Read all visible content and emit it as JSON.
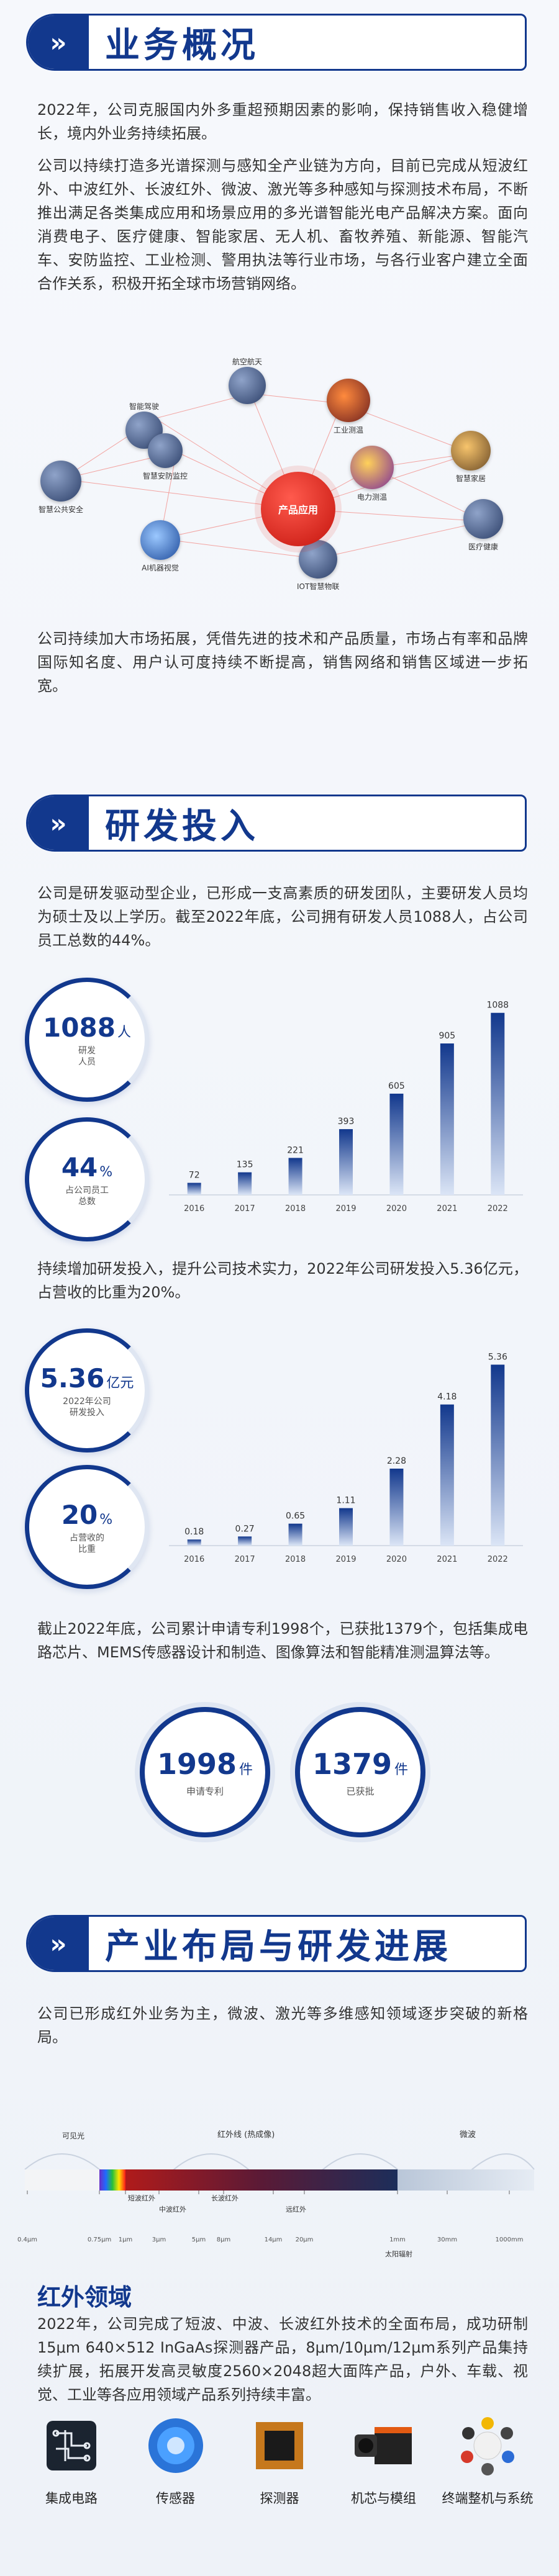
{
  "section1": {
    "badge": "»",
    "title": "业务概况",
    "para1": "2022年，公司克服国内外多重超预期因素的影响，保持销售收入稳健增长，境内外业务持续拓展。",
    "para2": "公司以持续打造多光谱探测与感知全产业链为方向，目前已完成从短波红外、中波红外、长波红外、微波、激光等多种感知与探测技术布局，不断推出满足各类集成应用和场景应用的多光谱智能光电产品解决方案。面向消费电子、医疗健康、智能家居、无人机、畜牧养殖、新能源、智能汽车、安防监控、工业检测、警用执法等行业市场，与各行业客户建立全面合作关系，积极开拓全球市场营销网络。",
    "ecosystem": {
      "center": "产品应用",
      "nodes": [
        "航空航天",
        "工业测温",
        "智能驾驶",
        "智慧家居",
        "智慧安防监控",
        "电力测温",
        "智慧公共安全",
        "医疗健康",
        "AI机器视觉",
        "IOT智慧物联"
      ]
    },
    "para3": "公司持续加大市场拓展，凭借先进的技术和产品质量，市场占有率和品牌国际知名度、用户认可度持续不断提高，销售网络和销售区域进一步拓宽。"
  },
  "section2": {
    "badge": "»",
    "title": "研发投入",
    "para1": "公司是研发驱动型企业，已形成一支高素质的研发团队，主要研发人员均为硕士及以上学历。截至2022年底，公司拥有研发人员1088人，占公司员工总数的44%。",
    "stat_staff": {
      "num": "1088",
      "unit": "人",
      "sub": "研发\n人员"
    },
    "stat_staff_pct": {
      "num": "44",
      "unit": "%",
      "sub": "占公司员工\n总数"
    },
    "para2": "持续增加研发投入，提升公司技术实力，2022年公司研发投入5.36亿元，占营收的比重为20%。",
    "stat_invest": {
      "num": "5.36",
      "unit": "亿元",
      "sub": "2022年公司\n研发投入"
    },
    "stat_invest_pct": {
      "num": "20",
      "unit": "%",
      "sub": "占营收的\n比重"
    },
    "para3": "截止2022年底，公司累计申请专利1998个，已获批1379个，包括集成电路芯片、MEMS传感器设计和制造、图像算法和智能精准测温算法等。",
    "patent_apply": {
      "num": "1998",
      "unit": "件",
      "sub": "申请专利"
    },
    "patent_granted": {
      "num": "1379",
      "unit": "件",
      "sub": "已获批"
    }
  },
  "chart_data": [
    {
      "type": "bar",
      "categories": [
        "2016",
        "2017",
        "2018",
        "2019",
        "2020",
        "2021",
        "2022"
      ],
      "values": [
        72,
        135,
        221,
        393,
        605,
        905,
        1088
      ],
      "labels": [
        "72",
        "135",
        "221",
        "393",
        "605",
        "905",
        "1088"
      ],
      "ylim": [
        0,
        1150
      ]
    },
    {
      "type": "bar",
      "categories": [
        "2016",
        "2017",
        "2018",
        "2019",
        "2020",
        "2021",
        "2022"
      ],
      "values": [
        0.18,
        0.27,
        0.65,
        1.11,
        2.28,
        4.18,
        5.36
      ],
      "labels": [
        "0.18",
        "0.27",
        "0.65",
        "1.11",
        "2.28",
        "4.18",
        "5.36"
      ],
      "ylim": [
        0,
        5.7
      ]
    }
  ],
  "section3": {
    "badge": "»",
    "title": "产业布局与研发进展",
    "para1": "公司已形成红外业务为主，微波、激光等多维感知领域逐步突破的新格局。",
    "spectrum": {
      "visible": "可见光",
      "infrared": "红外线 (热成像)",
      "microwave": "微波",
      "swir": "短波红外",
      "mwir": "中波红外",
      "lwir": "长波红外",
      "far_ir": "远红外",
      "ticks": [
        "0.4μm",
        "0.75μm",
        "1μm",
        "3μm",
        "5μm",
        "8μm",
        "14μm",
        "20μm",
        "1mm",
        "30mm",
        "1000mm"
      ],
      "sun": "太阳辐射"
    },
    "ir_title": "红外领域",
    "ir_para": "2022年，公司完成了短波、中波、长波红外技术的全面布局，成功研制15μm 640×512 InGaAs探测器产品，8μm/10μm/12μm系列产品集持续扩展，拓展开发高灵敏度2560×2048超大面阵产品，户外、车载、视觉、工业等各应用领域产品系列持续丰富。",
    "products": [
      "集成电路",
      "传感器",
      "探测器",
      "机芯与模组",
      "终端整机与系统"
    ]
  },
  "colors": {
    "primary": "#12388d",
    "accent": "#d7221a"
  }
}
